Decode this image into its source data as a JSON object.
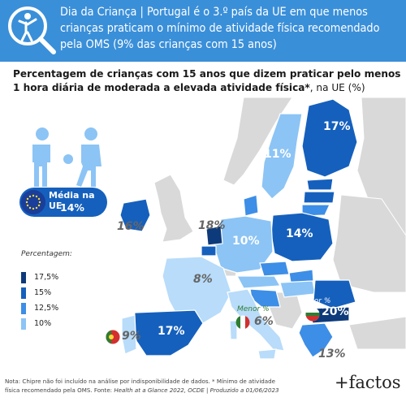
{
  "header": {
    "tag": "Dia da Criança",
    "separator": " | ",
    "title": "Portugal é o 3.º país da UE em que menos crianças praticam o mínimo de atividade física recomendado pela OMS (9% das crianças com 15 anos)"
  },
  "subtitle": {
    "bold": "Percentagem de crianças com 15 anos que dizem praticar pelo menos 1 hora diária de moderada a elevada atividade física*",
    "rest": ", na UE (%)"
  },
  "average": {
    "label": "Média na UE:",
    "value": "14%"
  },
  "legend": {
    "title": "Percentagem:",
    "items": [
      {
        "label": "17,5%",
        "color": "#0d3a7a"
      },
      {
        "label": "15%",
        "color": "#1560bd"
      },
      {
        "label": "12,5%",
        "color": "#3d8ee6"
      },
      {
        "label": "10%",
        "color": "#8cc4f5"
      }
    ]
  },
  "map_values": {
    "finland": "17%",
    "sweden": "11%",
    "poland": "14%",
    "germany": "10%",
    "france": "8%",
    "spain": "17%",
    "portugal": "9%",
    "ireland": "16%",
    "netherlands": "18%",
    "italy": "6%",
    "bulgaria": "20%",
    "greece": "13%"
  },
  "callouts": {
    "minor": "Menor %",
    "major": "Maior %"
  },
  "colors": {
    "header_bg": "#3a8fd9",
    "darkest": "#0d3a7a",
    "dark": "#1560bd",
    "mid": "#3d8ee6",
    "light": "#8cc4f5",
    "lightest": "#b8dcfa",
    "non_eu": "#d9d9d9",
    "minor_color": "#4caf50",
    "major_color": "#ffffff"
  },
  "footnote": {
    "line1": "Nota: Chipre não foi incluído na análise por indisponibilidade de dados. * Mínimo de atividade",
    "line2_a": "física recomendado pela OMS. Fonte: ",
    "source": "Health at a Glance 2022, OCDE",
    "line2_b": " | ",
    "produced": "Produzido a 01/06/2023"
  },
  "brand": {
    "plus": "+",
    "name": "factos"
  }
}
